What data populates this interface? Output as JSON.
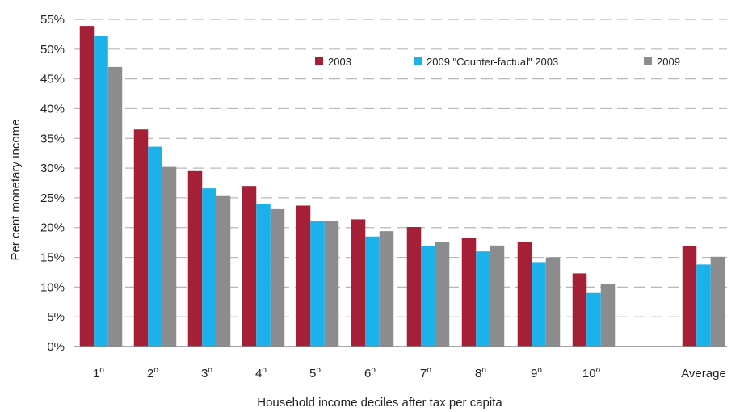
{
  "chart_data": {
    "type": "bar",
    "xlabel": "Household income deciles after tax per capita",
    "ylabel": "Per cent monetary income",
    "ylim": [
      0,
      55
    ],
    "y_ticks": [
      "0%",
      "5%",
      "10%",
      "15%",
      "20%",
      "25%",
      "30%",
      "35%",
      "40%",
      "45%",
      "50%",
      "55%"
    ],
    "grid": "horizontal dashed",
    "legend_position": "top-right",
    "categories": [
      {
        "base": "1",
        "sup": "o"
      },
      {
        "base": "2",
        "sup": "o"
      },
      {
        "base": "3",
        "sup": "o"
      },
      {
        "base": "4",
        "sup": "o"
      },
      {
        "base": "5",
        "sup": "o"
      },
      {
        "base": "6",
        "sup": "o"
      },
      {
        "base": "7",
        "sup": "o"
      },
      {
        "base": "8",
        "sup": "o"
      },
      {
        "base": "9",
        "sup": "o"
      },
      {
        "base": "10",
        "sup": "o"
      },
      {
        "base": "Average",
        "sup": ""
      }
    ],
    "series": [
      {
        "name": "2003",
        "color": "#a51f36",
        "values": [
          53.9,
          36.5,
          29.5,
          27.0,
          23.7,
          21.4,
          20.1,
          18.3,
          17.6,
          12.3,
          16.9
        ]
      },
      {
        "name": "2009 \"Counter-factual\" 2003",
        "color": "#1bb1ea",
        "values": [
          52.2,
          33.6,
          26.6,
          23.9,
          21.1,
          18.5,
          16.9,
          16.0,
          14.2,
          9.0,
          13.8
        ]
      },
      {
        "name": "2009",
        "color": "#8c8c8e",
        "values": [
          47.0,
          30.2,
          25.3,
          23.1,
          21.1,
          19.4,
          17.6,
          17.0,
          15.0,
          10.5,
          15.1
        ]
      }
    ]
  }
}
